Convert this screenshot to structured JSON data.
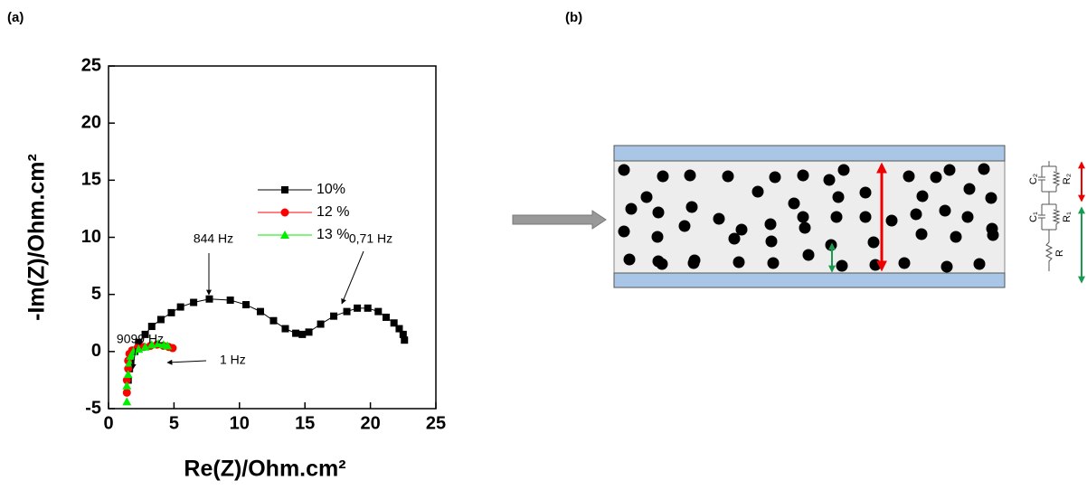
{
  "panel_labels": [
    "(a)",
    "(b)"
  ],
  "chart_data": {
    "type": "scatter",
    "xlabel": "Re(Z)/Ohm.cm²",
    "ylabel": "-Im(Z)/Ohm.cm²",
    "xlim": [
      0,
      25
    ],
    "ylim": [
      -5,
      25
    ],
    "xticks": [
      0,
      5,
      10,
      15,
      20,
      25
    ],
    "yticks": [
      -5,
      0,
      5,
      10,
      15,
      20,
      25
    ],
    "legend": "center",
    "annotations": [
      "844 Hz",
      "0,71 Hz",
      "9099 Hz",
      "1 Hz"
    ],
    "series": [
      {
        "name": "10%",
        "color": "#000000",
        "marker": "square",
        "line": true,
        "x": [
          1.5,
          1.6,
          1.7,
          2.0,
          2.3,
          2.8,
          3.3,
          4.0,
          4.8,
          5.5,
          6.5,
          7.7,
          9.3,
          10.5,
          11.6,
          12.6,
          13.5,
          14.3,
          14.8,
          15.3,
          16.2,
          17.2,
          18.2,
          19.0,
          19.8,
          20.6,
          21.2,
          21.8,
          22.2,
          22.5,
          22.6
        ],
        "values": [
          -2.5,
          -1.5,
          -0.8,
          0.0,
          0.8,
          1.5,
          2.2,
          2.8,
          3.4,
          3.9,
          4.3,
          4.6,
          4.5,
          4.1,
          3.5,
          2.7,
          2.0,
          1.6,
          1.5,
          1.7,
          2.4,
          3.1,
          3.5,
          3.8,
          3.8,
          3.5,
          3.0,
          2.5,
          2.0,
          1.5,
          1.0
        ]
      },
      {
        "name": "12 %",
        "color": "#ff0000",
        "marker": "circle",
        "line": false,
        "x": [
          1.4,
          1.4,
          1.5,
          1.5,
          1.6,
          1.8,
          2.2,
          2.7,
          3.2,
          3.7,
          4.2,
          4.6,
          4.9
        ],
        "values": [
          -3.6,
          -2.5,
          -1.5,
          -0.8,
          -0.2,
          0.1,
          0.3,
          0.4,
          0.5,
          0.6,
          0.5,
          0.4,
          0.3
        ]
      },
      {
        "name": "13 %",
        "color": "#00ee00",
        "marker": "triangle",
        "line": false,
        "x": [
          1.4,
          1.4,
          1.5,
          1.6,
          1.7,
          1.9,
          2.3,
          2.8,
          3.3,
          3.8,
          4.2,
          4.5
        ],
        "values": [
          -4.4,
          -3.0,
          -2.0,
          -1.0,
          -0.4,
          0.0,
          0.2,
          0.4,
          0.6,
          0.7,
          0.6,
          0.5
        ]
      }
    ]
  },
  "diagram": {
    "labels": [
      "C₂",
      "R₂",
      "C₁",
      "R₁",
      "R"
    ]
  }
}
